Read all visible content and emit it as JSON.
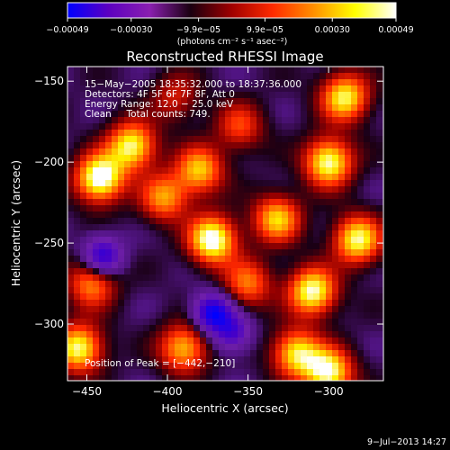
{
  "chart_data": {
    "type": "heatmap",
    "title": "Reconstructed RHESSI Image",
    "xlabel": "Heliocentric X (arcsec)",
    "ylabel": "Heliocentric Y (arcsec)",
    "xlim": [
      -462,
      -266
    ],
    "ylim": [
      -335,
      -141
    ],
    "x_ticks": [
      -450,
      -400,
      -350,
      -300
    ],
    "y_ticks": [
      -150,
      -200,
      -250,
      -300
    ],
    "x_tick_labels": [
      "−450",
      "−400",
      "−350",
      "−300"
    ],
    "y_tick_labels": [
      "−150",
      "−200",
      "−250",
      "−300"
    ],
    "colorbar": {
      "range": [
        -0.00049,
        0.00049
      ],
      "tick_values": [
        -0.00049,
        -0.0003,
        -9.9e-05,
        9.9e-05,
        0.0003,
        0.00049
      ],
      "tick_labels": [
        "−0.00049",
        "−0.00030",
        "−9.9e−05",
        "9.9e−05",
        "0.00030",
        "0.00049"
      ],
      "units_label": "(photons cm⁻² s⁻¹ asec⁻²)",
      "colormap": [
        "#0000ff",
        "#5c00c0",
        "#8a1fb0",
        "#1a0010",
        "#a00000",
        "#ff2a00",
        "#ff9000",
        "#ffff00",
        "#ffffff"
      ]
    },
    "info_lines": [
      "15−May−2005 18:35:32.000 to 18:37:36.000",
      "Detectors: 4F 5F 6F 7F 8F, Att 0",
      "Energy Range: 12.0 − 25.0 keV",
      "Clean     Total counts: 749."
    ],
    "peak_label": "Position of Peak = [−442,−210]",
    "peak_position": [
      -442,
      -210
    ],
    "sources": [
      {
        "x": -442,
        "y": -210,
        "intensity": 1.0
      },
      {
        "x": -372,
        "y": -248,
        "intensity": 0.97
      },
      {
        "x": -422,
        "y": -190,
        "intensity": 0.85
      },
      {
        "x": -380,
        "y": -205,
        "intensity": 0.7
      },
      {
        "x": -332,
        "y": -235,
        "intensity": 0.72
      },
      {
        "x": -300,
        "y": -200,
        "intensity": 0.9
      },
      {
        "x": -290,
        "y": -160,
        "intensity": 0.82
      },
      {
        "x": -282,
        "y": -248,
        "intensity": 0.85
      },
      {
        "x": -310,
        "y": -280,
        "intensity": 0.9
      },
      {
        "x": -300,
        "y": -330,
        "intensity": 0.9
      },
      {
        "x": -320,
        "y": -318,
        "intensity": 0.78
      },
      {
        "x": -455,
        "y": -315,
        "intensity": 0.86
      },
      {
        "x": -390,
        "y": -315,
        "intensity": 0.7
      },
      {
        "x": -447,
        "y": -275,
        "intensity": 0.6
      },
      {
        "x": -402,
        "y": -222,
        "intensity": 0.62
      },
      {
        "x": -350,
        "y": -275,
        "intensity": 0.55
      },
      {
        "x": -395,
        "y": -160,
        "intensity": 0.35
      },
      {
        "x": -355,
        "y": -178,
        "intensity": 0.45
      }
    ],
    "dips": [
      {
        "x": -372,
        "y": -293,
        "depth": 0.9
      },
      {
        "x": -440,
        "y": -258,
        "depth": 0.75
      },
      {
        "x": -360,
        "y": -305,
        "depth": 0.6
      }
    ],
    "grid": false
  },
  "footer": {
    "timestamp": "9−Jul−2013 14:27"
  }
}
